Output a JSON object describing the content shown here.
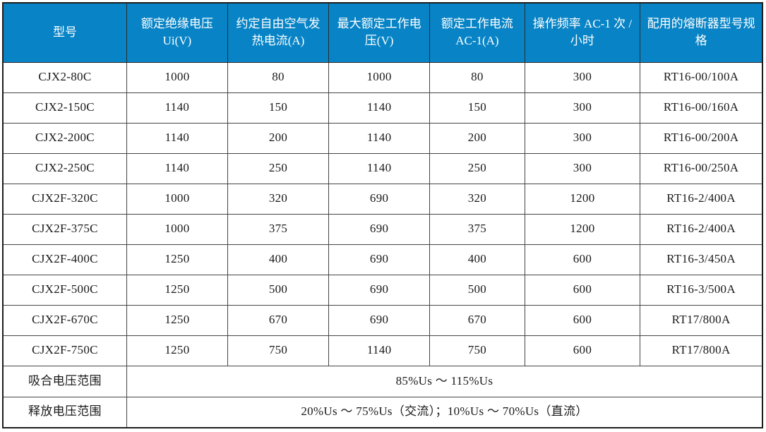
{
  "table": {
    "header_bg": "#0884c6",
    "header_text_color": "#ffffff",
    "body_text_color": "#1a1a1a",
    "border_color": "#454545",
    "columns": [
      "型号",
      "额定绝缘电压 Ui(V)",
      "约定自由空气发热电流(A)",
      "最大额定工作电压(V)",
      "额定工作电流 AC-1(A)",
      "操作频率 AC-1 次 / 小时",
      "配用的熔断器型号规格"
    ],
    "rows": [
      [
        "CJX2-80C",
        "1000",
        "80",
        "1000",
        "80",
        "300",
        "RT16-00/100A"
      ],
      [
        "CJX2-150C",
        "1140",
        "150",
        "1140",
        "150",
        "300",
        "RT16-00/160A"
      ],
      [
        "CJX2-200C",
        "1140",
        "200",
        "1140",
        "200",
        "300",
        "RT16-00/200A"
      ],
      [
        "CJX2-250C",
        "1140",
        "250",
        "1140",
        "250",
        "300",
        "RT16-00/250A"
      ],
      [
        "CJX2F-320C",
        "1000",
        "320",
        "690",
        "320",
        "1200",
        "RT16-2/400A"
      ],
      [
        "CJX2F-375C",
        "1000",
        "375",
        "690",
        "375",
        "1200",
        "RT16-2/400A"
      ],
      [
        "CJX2F-400C",
        "1250",
        "400",
        "690",
        "400",
        "600",
        "RT16-3/450A"
      ],
      [
        "CJX2F-500C",
        "1250",
        "500",
        "690",
        "500",
        "600",
        "RT16-3/500A"
      ],
      [
        "CJX2F-670C",
        "1250",
        "670",
        "690",
        "670",
        "600",
        "RT17/800A"
      ],
      [
        "CJX2F-750C",
        "1250",
        "750",
        "1140",
        "750",
        "600",
        "RT17/800A"
      ]
    ],
    "footer_rows": [
      {
        "label": "吸合电压范围",
        "value": "85%Us ～ 115%Us"
      },
      {
        "label": "释放电压范围",
        "value": "20%Us ～ 75%Us（交流）；10%Us ～ 70%Us（直流）"
      }
    ]
  }
}
